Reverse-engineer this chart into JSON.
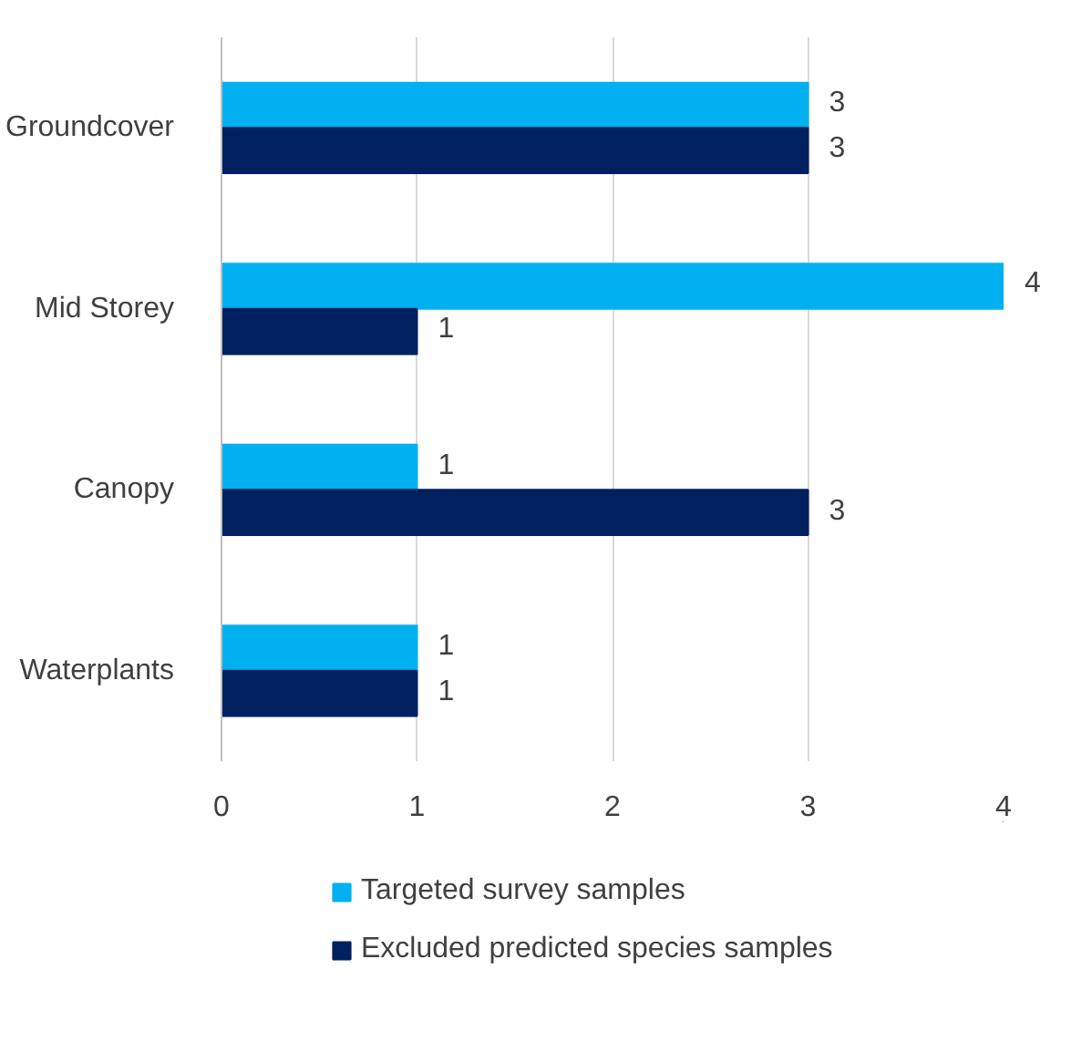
{
  "chart_data": {
    "type": "bar",
    "orientation": "horizontal",
    "categories": [
      "Groundcover",
      "Mid Storey",
      "Canopy",
      "Waterplants"
    ],
    "series": [
      {
        "name": "Targeted survey samples",
        "color": "#00b0f0",
        "values": [
          3,
          4,
          1,
          1
        ]
      },
      {
        "name": "Excluded predicted species samples",
        "color": "#002060",
        "values": [
          3,
          1,
          3,
          1
        ]
      }
    ],
    "xlim": [
      0,
      4
    ],
    "xticks": [
      0,
      1,
      2,
      3,
      4
    ],
    "grid": "x",
    "legend": "bottom",
    "data_labels": true
  }
}
